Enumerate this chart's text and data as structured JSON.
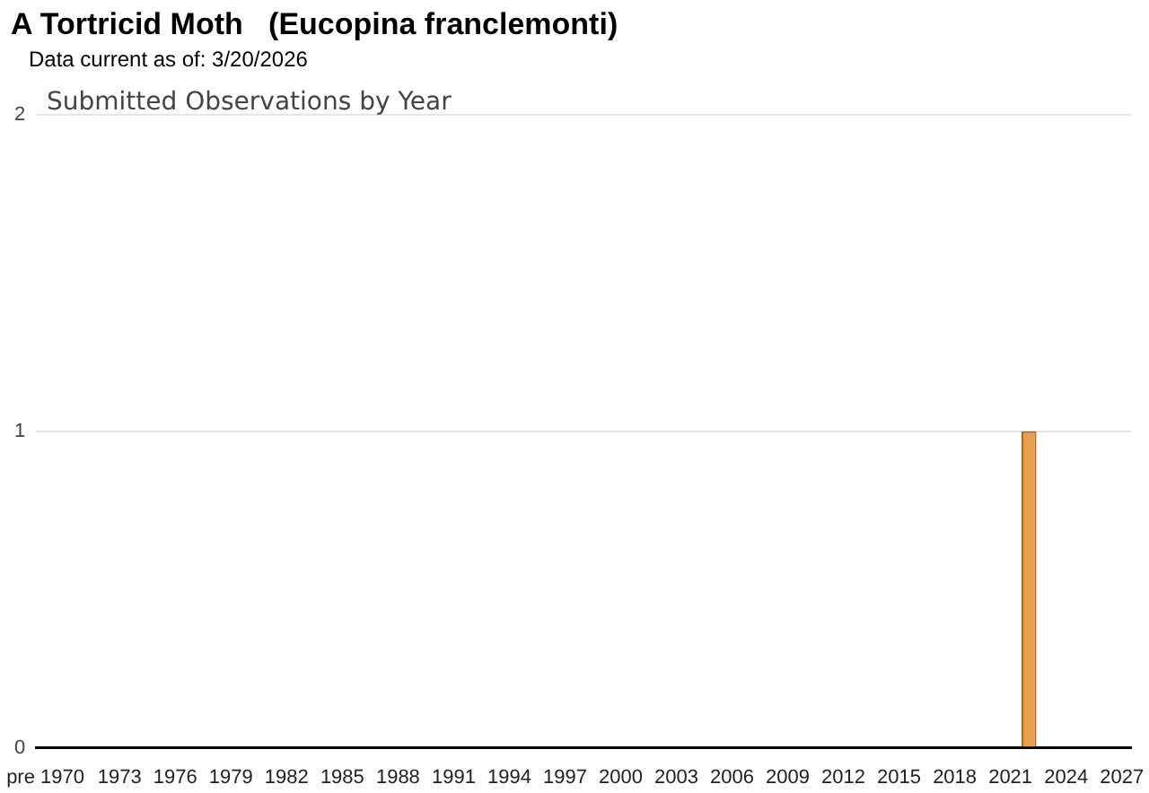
{
  "chart_data": {
    "type": "bar",
    "title": "A Tortricid Moth   (Eucopina franclemonti)",
    "subtitle": "Data current as of: 3/20/2026",
    "annotations": [
      "Submitted Observations by Year"
    ],
    "categories": [
      "pre 1970",
      null,
      null,
      null,
      "1973",
      null,
      null,
      "1976",
      null,
      null,
      "1979",
      null,
      null,
      "1982",
      null,
      null,
      "1985",
      null,
      null,
      "1988",
      null,
      null,
      "1991",
      null,
      null,
      "1994",
      null,
      null,
      "1997",
      null,
      null,
      "2000",
      null,
      null,
      "2003",
      null,
      null,
      "2006",
      null,
      null,
      "2009",
      null,
      null,
      "2012",
      null,
      null,
      "2015",
      null,
      null,
      "2018",
      null,
      null,
      "2021",
      null,
      null,
      "2024",
      null,
      null,
      "2027"
    ],
    "values": [
      0,
      0,
      0,
      0,
      0,
      0,
      0,
      0,
      0,
      0,
      0,
      0,
      0,
      0,
      0,
      0,
      0,
      0,
      0,
      0,
      0,
      0,
      0,
      0,
      0,
      0,
      0,
      0,
      0,
      0,
      0,
      0,
      0,
      0,
      0,
      0,
      0,
      0,
      0,
      0,
      0,
      0,
      0,
      0,
      0,
      0,
      0,
      0,
      0,
      0,
      0,
      0,
      0,
      1,
      0,
      0,
      0,
      0,
      0
    ],
    "color": "#e8a050",
    "ylim": [
      0,
      2
    ],
    "yticks": [
      0,
      1,
      2
    ],
    "grid": "y"
  }
}
